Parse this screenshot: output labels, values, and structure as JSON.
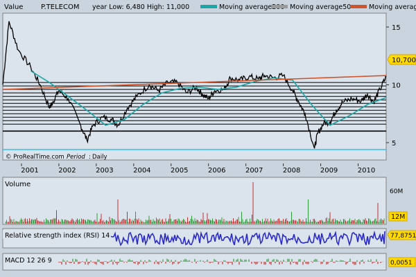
{
  "header": {
    "value_label": "Value",
    "symbol": "P.TELECOM",
    "year_range": "year Low: 6,480 High: 11,000",
    "legend": [
      {
        "label": "Moving average200",
        "color": "#1aa7a7"
      },
      {
        "label": "Moving average50",
        "color": "#9a9a9a"
      },
      {
        "label": "Moving average",
        "color": "#d0542a"
      }
    ]
  },
  "watermark": "© ProRealTime.com",
  "period_label": "Period",
  "period_value": "Daily",
  "price_axis": {
    "ticks": [
      {
        "value": 15,
        "label": "15"
      },
      {
        "value": 10,
        "label": "10"
      },
      {
        "value": 5,
        "label": "5"
      }
    ]
  },
  "last_price": "10,700",
  "year_axis": [
    "2001",
    "2002",
    "2003",
    "2004",
    "2005",
    "2006",
    "2007",
    "2008",
    "2009",
    "2010"
  ],
  "volume_panel": {
    "title": "Volume",
    "ticks": [
      {
        "value": 60,
        "label": "60M"
      }
    ],
    "last": "12M"
  },
  "rsi_panel": {
    "title": "Relative strength index (RSI) 14",
    "last": "77,8751"
  },
  "macd_panel": {
    "title": "MACD 12 26 9",
    "last": "0,0051"
  },
  "colors": {
    "background": "#c9d4de",
    "plot_bg": "#dbe4ec",
    "price": "#000000",
    "rsi": "#2a2acc",
    "volume_up": "#2f9a3a",
    "volume_down": "#c0302f",
    "price_label_bg": "#ffd900"
  },
  "chart_data": {
    "type": "line",
    "title": "P.TELECOM",
    "x_range": [
      "2000-07",
      "2010-10"
    ],
    "ylim": [
      3.5,
      16.2
    ],
    "series": [
      {
        "name": "P.TELECOM",
        "x": [
          "2000-07",
          "2000-09",
          "2000-12",
          "2001-04",
          "2001-07",
          "2001-10",
          "2001-11",
          "2002-01",
          "2002-04",
          "2002-08",
          "2002-10",
          "2002-12",
          "2003-03",
          "2003-06",
          "2003-08",
          "2003-11",
          "2004-02",
          "2004-06",
          "2004-09",
          "2004-12",
          "2005-03",
          "2005-06",
          "2005-09",
          "2005-11",
          "2006-01",
          "2006-03",
          "2006-06",
          "2006-08",
          "2006-11",
          "2007-02",
          "2007-05",
          "2007-07",
          "2007-10",
          "2008-01",
          "2008-04",
          "2008-06",
          "2008-08",
          "2008-11",
          "2008-12",
          "2009-02",
          "2009-04",
          "2009-06",
          "2009-08",
          "2009-11",
          "2010-02",
          "2010-04",
          "2010-06",
          "2010-08",
          "2010-10"
        ],
        "values": [
          10,
          15.5,
          13,
          11.5,
          10,
          8,
          8.5,
          9.5,
          8.8,
          6.5,
          5.2,
          6.5,
          7.2,
          7,
          6.5,
          8,
          9,
          10,
          9.5,
          10.2,
          10.2,
          9.3,
          9.8,
          9.2,
          8.8,
          9.5,
          9.6,
          10.6,
          10.4,
          10.7,
          10.5,
          10.8,
          10.6,
          10.8,
          9.5,
          8.5,
          7.5,
          4.5,
          5.8,
          6.7,
          6.8,
          7.8,
          8.5,
          8.8,
          8.6,
          9.2,
          8.5,
          9.6,
          10.7
        ]
      },
      {
        "name": "Moving average200",
        "x": [
          "2001-04",
          "2001-10",
          "2002-04",
          "2002-10",
          "2003-04",
          "2003-10",
          "2004-04",
          "2004-10",
          "2005-04",
          "2005-10",
          "2006-04",
          "2006-10",
          "2007-04",
          "2007-10",
          "2008-04",
          "2008-10",
          "2009-04",
          "2009-10",
          "2010-04",
          "2010-10"
        ],
        "values": [
          11.2,
          10.2,
          9.0,
          7.8,
          6.5,
          7.0,
          8.3,
          9.3,
          9.7,
          9.8,
          9.6,
          9.8,
          10.3,
          10.6,
          10.4,
          8.3,
          6.5,
          7.3,
          8.3,
          8.9
        ]
      },
      {
        "name": "Moving average",
        "x": [
          "2000-07",
          "2010-10"
        ],
        "values": [
          9.6,
          10.8
        ]
      }
    ],
    "horizontal_levels": [
      10.2,
      9.9,
      9.6,
      9.3,
      9.0,
      8.7,
      8.4,
      8.1,
      7.8,
      7.5,
      7.2,
      6.9,
      6.6,
      6.0
    ]
  }
}
